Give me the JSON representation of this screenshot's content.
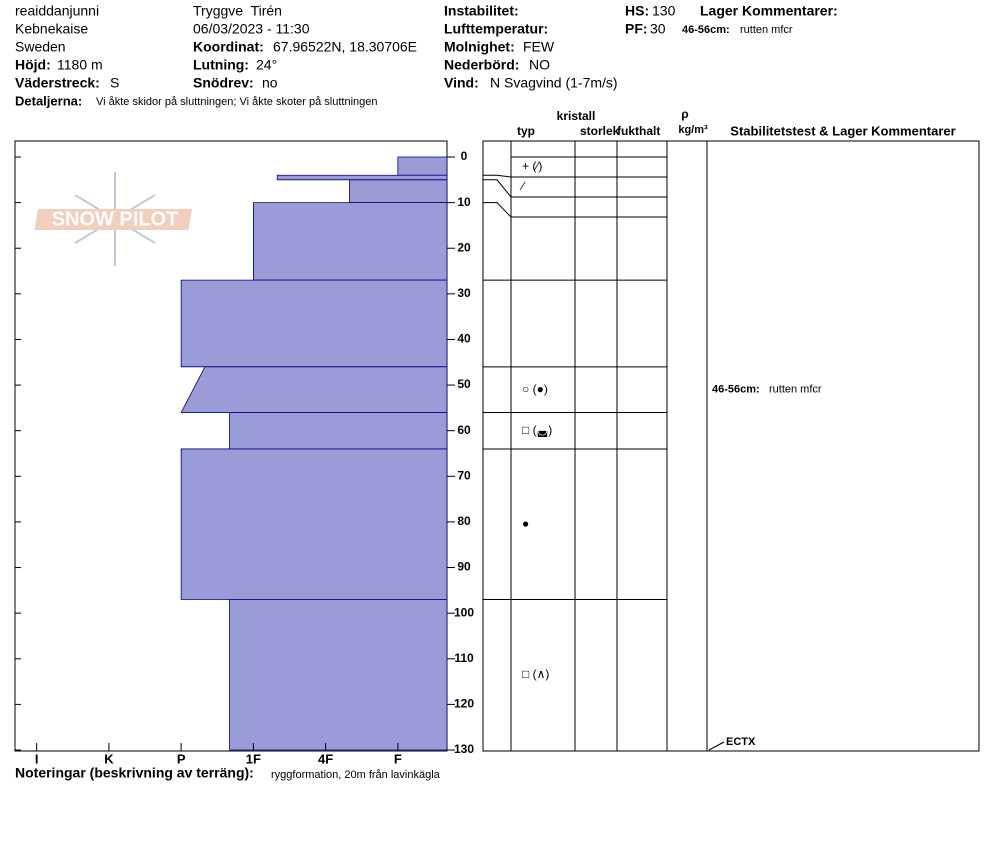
{
  "header": {
    "site": "reaiddanjunni",
    "location": "Kebnekaise",
    "country": "Sweden",
    "elevation": {
      "label": "Höjd:",
      "value": "1180 m"
    },
    "aspect": {
      "label": "Väderstreck:",
      "value": "S"
    },
    "details": {
      "label": "Detaljerna:",
      "value": "Vi åkte skidor på sluttningen; Vi åkte skoter på sluttningen"
    },
    "observer": "Tryggve  Tirén",
    "datetime": "06/03/2023 - 11:30",
    "coordinates": {
      "label": "Koordinat:",
      "value": "67.96522N, 18.30706E"
    },
    "slope": {
      "label": "Lutning:",
      "value": "24°"
    },
    "wind_drift": {
      "label": "Snödrev:",
      "value": "no"
    },
    "instability": {
      "label": "Instabilitet:"
    },
    "air_temperature": {
      "label": "Lufttemperatur:"
    },
    "sky": {
      "label": "Molnighet:",
      "value": "FEW"
    },
    "precipitation": {
      "label": "Nederbörd:",
      "value": "NO"
    },
    "wind": {
      "label": "Vind:",
      "value": "N Svagvind (1-7m/s)"
    },
    "hs": {
      "label": "HS:",
      "value": 130
    },
    "pf": {
      "label": "PF:",
      "value": 30
    },
    "layer_comments_title": "Lager Kommentarer:",
    "layer_comments": [
      {
        "label": "46-56cm:",
        "text": "rutten mfcr"
      }
    ]
  },
  "logo": "SNOW PILOT",
  "columns": {
    "crystal": "kristall",
    "type": "typ",
    "size": "storlek",
    "moisture": "fukthalt",
    "density_symbol": "ρ",
    "density_unit": "kg/m³",
    "stability": "Stabilitetstest & Lager Kommentarer"
  },
  "profile": {
    "ylim": [
      0,
      130
    ],
    "yticks": [
      0,
      10,
      20,
      30,
      40,
      50,
      60,
      70,
      80,
      90,
      100,
      110,
      120,
      130
    ],
    "xlim": [
      6.3,
      0.32
    ],
    "xticks": [
      {
        "value": 6,
        "label": "I"
      },
      {
        "value": 5,
        "label": "K"
      },
      {
        "value": 4,
        "label": "P"
      },
      {
        "value": 3,
        "label": "1F"
      },
      {
        "value": 2,
        "label": "4F"
      },
      {
        "value": 1,
        "label": "F"
      }
    ],
    "color": "#9b9bd8",
    "layers": [
      {
        "top": 0,
        "bottom": 4,
        "hardness": 1,
        "grain": "+ (∕)"
      },
      {
        "top": 4,
        "bottom": 5,
        "hardness": 2.67,
        "grain": "∕"
      },
      {
        "top": 5,
        "bottom": 10,
        "hardness": 1.67
      },
      {
        "top": 10,
        "bottom": 27,
        "hardness": 3
      },
      {
        "top": 27,
        "bottom": 46,
        "hardness": 4
      },
      {
        "top": 46,
        "bottom": 56,
        "hardness": 3.67,
        "hardness_bottom": 4,
        "grain": "○ (●)",
        "comment": {
          "label": "46-56cm:",
          "text": "rutten mfcr"
        }
      },
      {
        "top": 56,
        "bottom": 64,
        "hardness": 3.33,
        "grain": "□ (◛)"
      },
      {
        "top": 64,
        "bottom": 97,
        "hardness": 4,
        "grain": "●"
      },
      {
        "top": 97,
        "bottom": 130,
        "hardness": 3.33,
        "grain": "□ (∧)"
      }
    ]
  },
  "tests": [
    {
      "depth": 130,
      "label": "ECTX"
    }
  ],
  "notes": {
    "label": "Noteringar (beskrivning av terräng):",
    "value": "ryggformation, 20m från lavinkägla"
  }
}
